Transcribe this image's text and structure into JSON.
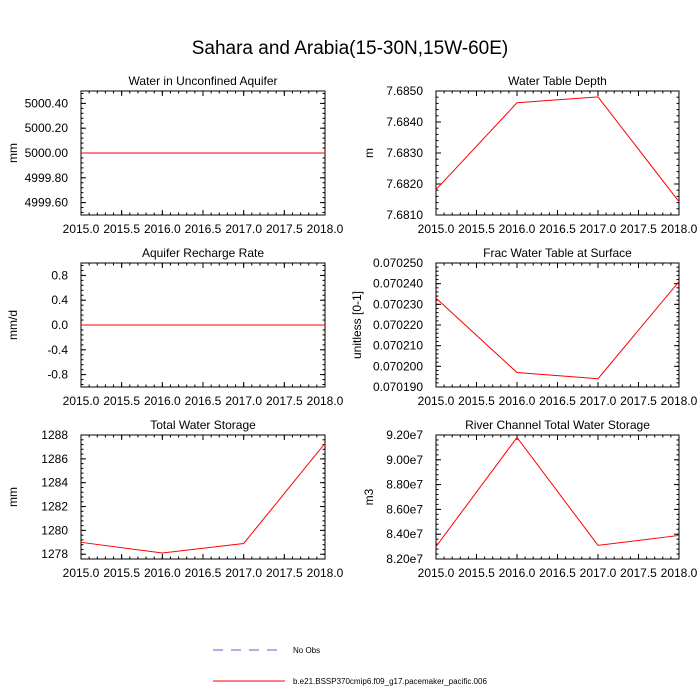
{
  "figure_title": "Sahara and Arabia(15-30N,15W-60E)",
  "colors": {
    "case_line": "#ff0000",
    "obs_line": "#6a5acd",
    "axis": "#000000"
  },
  "legend": {
    "items": [
      {
        "label": "No Obs",
        "style": "dashed",
        "color": "#6a5acd"
      },
      {
        "label": "b.e21.BSSP370cmip6.f09_g17.pacemaker_pacific.006",
        "style": "solid",
        "color": "#ff0000"
      }
    ]
  },
  "chart_data": [
    {
      "type": "line",
      "title": "Water in Unconfined Aquifer",
      "ylabel": "mm",
      "xlim": [
        2015.0,
        2018.0
      ],
      "ylim": [
        4999.5,
        5000.5
      ],
      "xticks": [
        2015.0,
        2015.5,
        2016.0,
        2016.5,
        2017.0,
        2017.5,
        2018.0
      ],
      "xtick_labels": [
        "2015.0",
        "2015.5",
        "2016.0",
        "2016.5",
        "2017.0",
        "2017.5",
        "2018.0"
      ],
      "yticks": [
        4999.6,
        4999.8,
        5000.0,
        5000.2,
        5000.4
      ],
      "ytick_labels": [
        "4999.60",
        "4999.80",
        "5000.00",
        "5000.20",
        "5000.40"
      ],
      "series": [
        {
          "x": [
            2015,
            2016,
            2017,
            2018
          ],
          "values": [
            5000.0,
            5000.0,
            5000.0,
            5000.0
          ]
        }
      ]
    },
    {
      "type": "line",
      "title": "Water Table Depth",
      "ylabel": "m",
      "xlim": [
        2015.0,
        2018.0
      ],
      "ylim": [
        7.681,
        7.685
      ],
      "xticks": [
        2015.0,
        2015.5,
        2016.0,
        2016.5,
        2017.0,
        2017.5,
        2018.0
      ],
      "xtick_labels": [
        "2015.0",
        "2015.5",
        "2016.0",
        "2016.5",
        "2017.0",
        "2017.5",
        "2018.0"
      ],
      "yticks": [
        7.681,
        7.682,
        7.683,
        7.684,
        7.685
      ],
      "ytick_labels": [
        "7.6810",
        "7.6820",
        "7.6830",
        "7.6840",
        "7.6850"
      ],
      "series": [
        {
          "x": [
            2015,
            2016,
            2017,
            2018
          ],
          "values": [
            7.68182,
            7.68462,
            7.68481,
            7.68143
          ]
        }
      ]
    },
    {
      "type": "line",
      "title": "Aquifer Recharge Rate",
      "ylabel": "mm/d",
      "xlim": [
        2015.0,
        2018.0
      ],
      "ylim": [
        -1.0,
        1.0
      ],
      "xticks": [
        2015.0,
        2015.5,
        2016.0,
        2016.5,
        2017.0,
        2017.5,
        2018.0
      ],
      "xtick_labels": [
        "2015.0",
        "2015.5",
        "2016.0",
        "2016.5",
        "2017.0",
        "2017.5",
        "2018.0"
      ],
      "yticks": [
        -0.8,
        -0.4,
        0.0,
        0.4,
        0.8
      ],
      "ytick_labels": [
        "-0.8",
        "-0.4",
        "0.0",
        "0.4",
        "0.8"
      ],
      "series": [
        {
          "x": [
            2015,
            2016,
            2017,
            2018
          ],
          "values": [
            0.0,
            0.0,
            0.0,
            0.0
          ]
        }
      ]
    },
    {
      "type": "line",
      "title": "Frac Water Table at Surface",
      "ylabel": "unitless [0-1]",
      "xlim": [
        2015.0,
        2018.0
      ],
      "ylim": [
        0.07019,
        0.07025
      ],
      "xticks": [
        2015.0,
        2015.5,
        2016.0,
        2016.5,
        2017.0,
        2017.5,
        2018.0
      ],
      "xtick_labels": [
        "2015.0",
        "2015.5",
        "2016.0",
        "2016.5",
        "2017.0",
        "2017.5",
        "2018.0"
      ],
      "yticks": [
        0.07019,
        0.0702,
        0.07021,
        0.07022,
        0.07023,
        0.07024,
        0.07025
      ],
      "ytick_labels": [
        "0.070190",
        "0.070200",
        "0.070210",
        "0.070220",
        "0.070230",
        "0.070240",
        "0.070250"
      ],
      "series": [
        {
          "x": [
            2015,
            2016,
            2017,
            2018
          ],
          "values": [
            0.070233,
            0.070197,
            0.070194,
            0.070241
          ]
        }
      ]
    },
    {
      "type": "line",
      "title": "Total Water Storage",
      "ylabel": "mm",
      "xlim": [
        2015.0,
        2018.0
      ],
      "ylim": [
        1277.6,
        1288.0
      ],
      "xticks": [
        2015.0,
        2015.5,
        2016.0,
        2016.5,
        2017.0,
        2017.5,
        2018.0
      ],
      "xtick_labels": [
        "2015.0",
        "2015.5",
        "2016.0",
        "2016.5",
        "2017.0",
        "2017.5",
        "2018.0"
      ],
      "yticks": [
        1278,
        1280,
        1282,
        1284,
        1286,
        1288
      ],
      "ytick_labels": [
        "1278",
        "1280",
        "1282",
        "1284",
        "1286",
        "1288"
      ],
      "series": [
        {
          "x": [
            2015,
            2016,
            2017,
            2018
          ],
          "values": [
            1279.0,
            1278.1,
            1278.9,
            1287.3
          ]
        }
      ]
    },
    {
      "type": "line",
      "title": "River Channel Total Water Storage",
      "ylabel": "m3",
      "xlim": [
        2015.0,
        2018.0
      ],
      "ylim": [
        82000000,
        92000000
      ],
      "xticks": [
        2015.0,
        2015.5,
        2016.0,
        2016.5,
        2017.0,
        2017.5,
        2018.0
      ],
      "xtick_labels": [
        "2015.0",
        "2015.5",
        "2016.0",
        "2016.5",
        "2017.0",
        "2017.5",
        "2018.0"
      ],
      "yticks": [
        82000000,
        84000000,
        86000000,
        88000000,
        90000000,
        92000000
      ],
      "ytick_labels": [
        "8.20e7",
        "8.40e7",
        "8.60e7",
        "8.80e7",
        "9.00e7",
        "9.20e7"
      ],
      "series": [
        {
          "x": [
            2015,
            2016,
            2017,
            2018
          ],
          "values": [
            83000000,
            91800000,
            83100000,
            83900000
          ]
        }
      ]
    }
  ]
}
